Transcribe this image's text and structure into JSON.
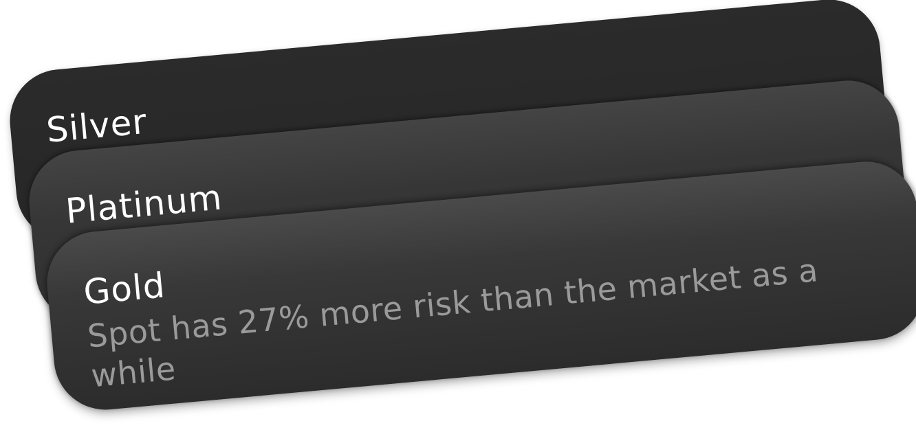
{
  "cards": [
    {
      "title": "Silver"
    },
    {
      "title": "Platinum"
    },
    {
      "title": "Gold",
      "description": "Spot has 27% more risk than the market as a while"
    }
  ]
}
